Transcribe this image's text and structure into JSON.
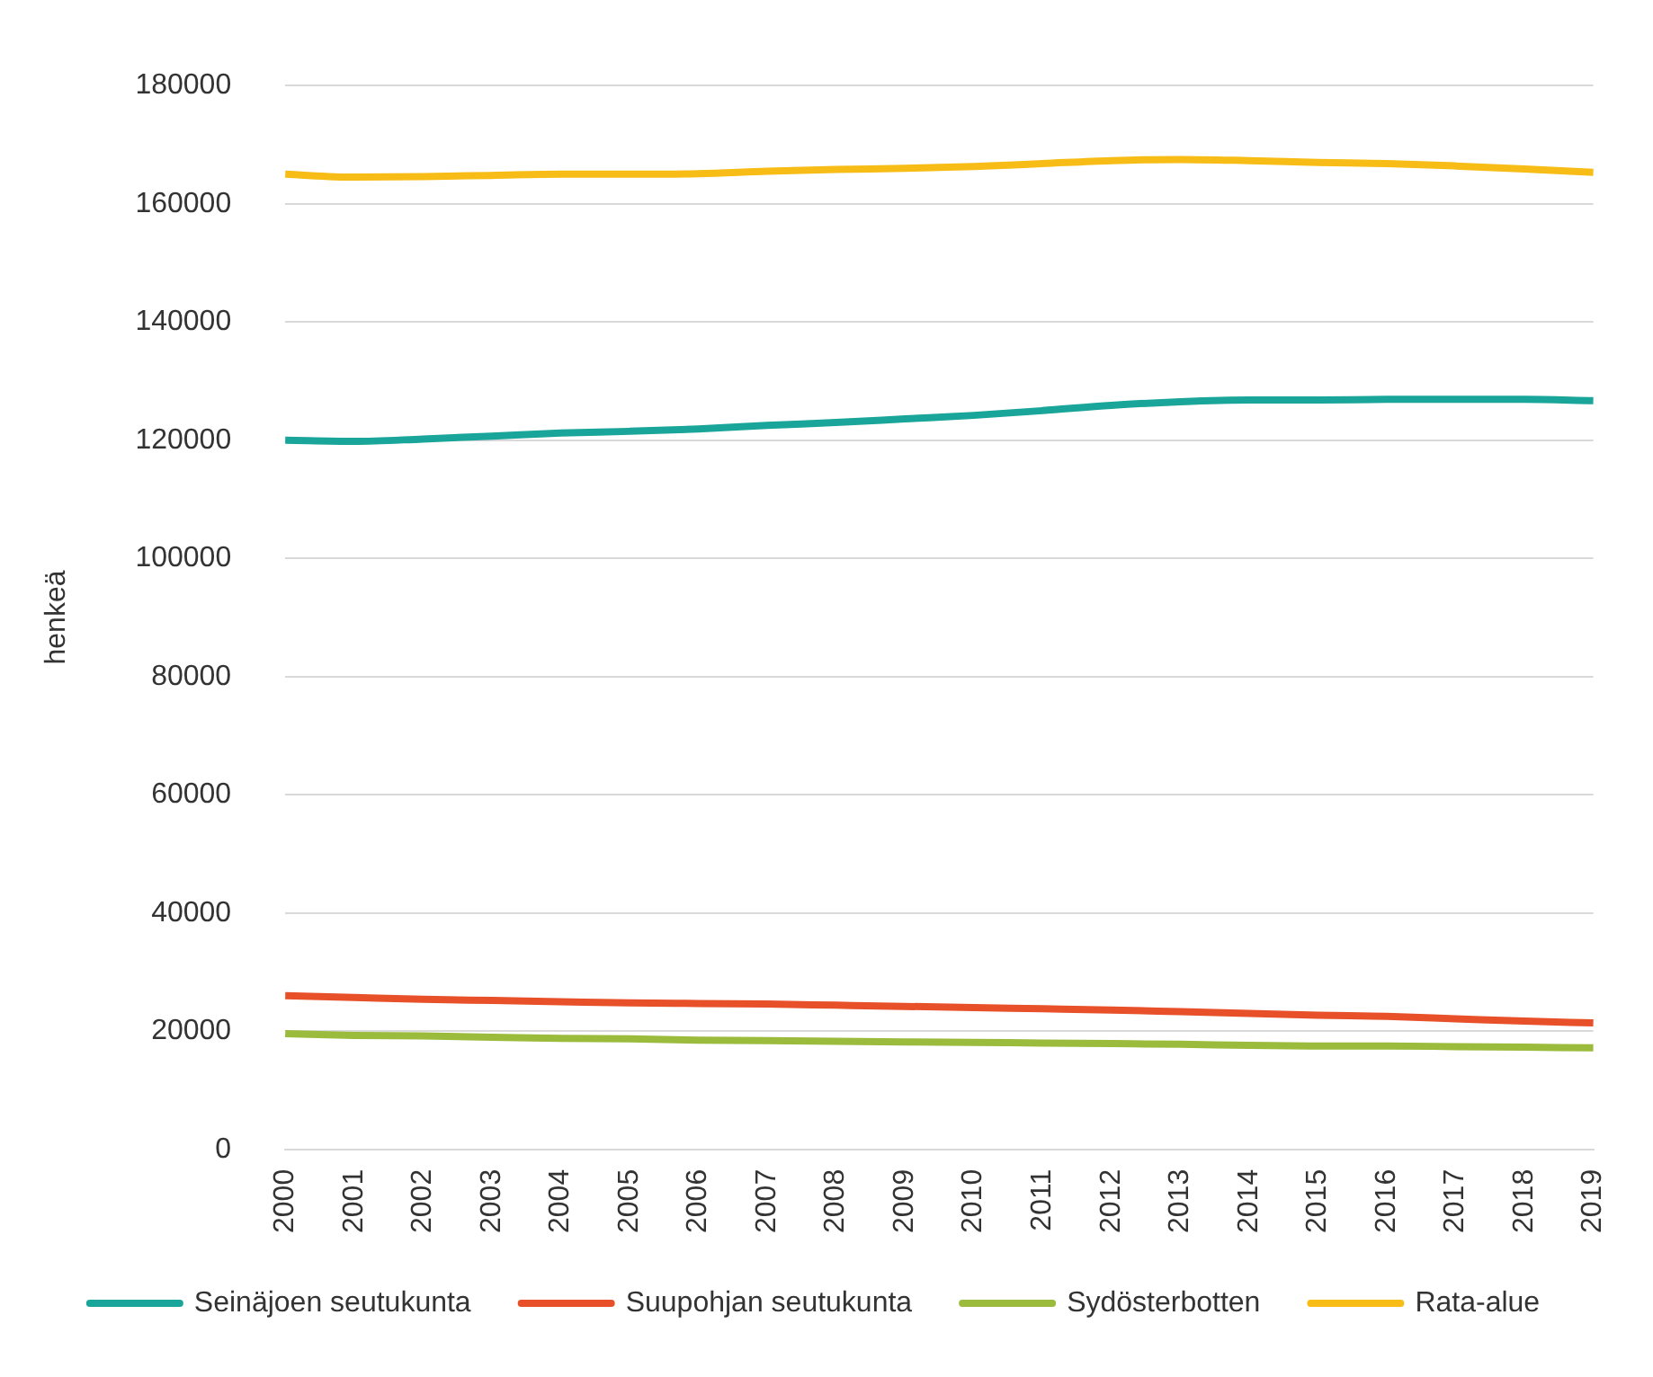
{
  "chart_data": {
    "type": "line",
    "ylabel": "henkeä",
    "categories": [
      "2000",
      "2001",
      "2002",
      "2003",
      "2004",
      "2005",
      "2006",
      "2007",
      "2008",
      "2009",
      "2010",
      "2011",
      "2012",
      "2013",
      "2014",
      "2015",
      "2016",
      "2017",
      "2018",
      "2019"
    ],
    "ylim": [
      0,
      180000
    ],
    "yticks": [
      0,
      20000,
      40000,
      60000,
      80000,
      100000,
      120000,
      140000,
      160000,
      180000
    ],
    "grid": "y",
    "legend": "bottom",
    "marker": "none",
    "line_style": "solid",
    "series": [
      {
        "name": "Seinäjoen seutukunta",
        "color": "#1aa59a",
        "values": [
          120000,
          119800,
          120200,
          120700,
          121200,
          121500,
          121900,
          122500,
          123000,
          123600,
          124200,
          125000,
          125900,
          126500,
          126800,
          126800,
          126900,
          126900,
          126900,
          126700
        ]
      },
      {
        "name": "Suupohjan seutukunta",
        "color": "#e8502a",
        "values": [
          26000,
          25700,
          25400,
          25200,
          25000,
          24800,
          24700,
          24600,
          24400,
          24200,
          24000,
          23800,
          23600,
          23300,
          23000,
          22700,
          22500,
          22100,
          21700,
          21400
        ]
      },
      {
        "name": "Sydösterbotten",
        "color": "#9bbb3c",
        "values": [
          19600,
          19300,
          19200,
          19000,
          18800,
          18700,
          18500,
          18400,
          18300,
          18200,
          18100,
          18000,
          17900,
          17800,
          17600,
          17500,
          17500,
          17400,
          17300,
          17200
        ]
      },
      {
        "name": "Rata-alue",
        "color": "#f7bd16",
        "values": [
          165000,
          164500,
          164600,
          164800,
          165000,
          165000,
          165100,
          165500,
          165800,
          166000,
          166300,
          166800,
          167300,
          167500,
          167300,
          167000,
          166800,
          166400,
          165900,
          165300
        ]
      }
    ]
  }
}
